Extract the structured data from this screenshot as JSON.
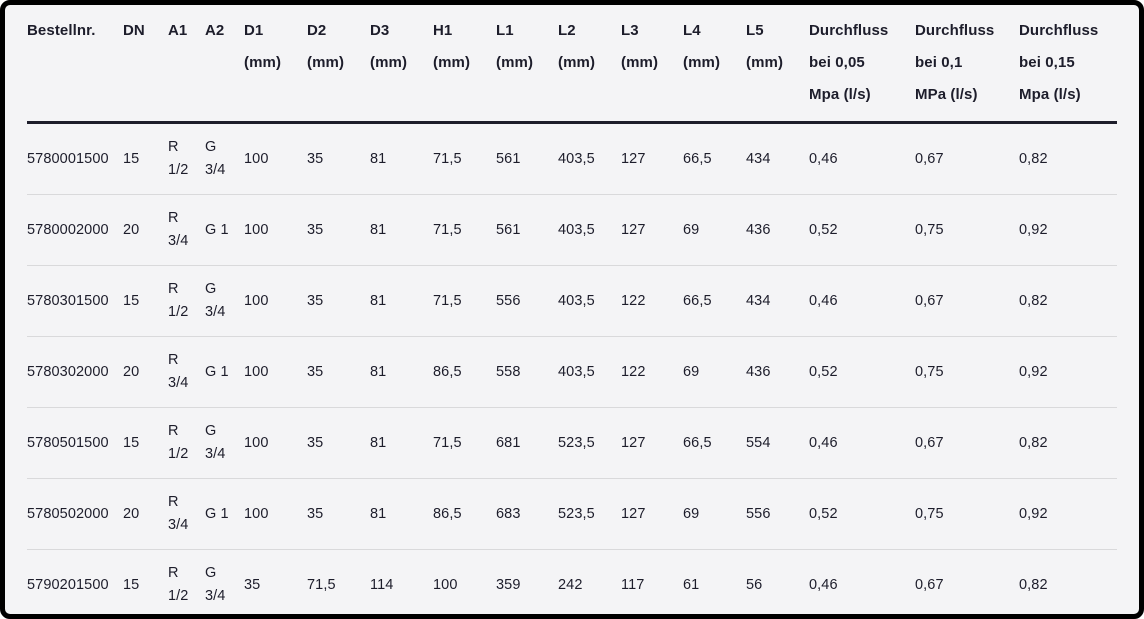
{
  "page": {
    "background_color": "#f4f4f6",
    "text_color": "#1d1d2b",
    "frame_color": "#000000",
    "header_rule_color": "#1d1d2b",
    "row_divider_color": "#d9d9db"
  },
  "table": {
    "columns": [
      {
        "id": "bestellnr",
        "label": "Bestellnr."
      },
      {
        "id": "dn",
        "label": "DN"
      },
      {
        "id": "a1",
        "label": "A1"
      },
      {
        "id": "a2",
        "label": "A2"
      },
      {
        "id": "d1",
        "label": "D1\n(mm)"
      },
      {
        "id": "d2",
        "label": "D2\n(mm)"
      },
      {
        "id": "d3",
        "label": "D3\n(mm)"
      },
      {
        "id": "h1",
        "label": "H1\n(mm)"
      },
      {
        "id": "l1",
        "label": "L1\n(mm)"
      },
      {
        "id": "l2",
        "label": "L2\n(mm)"
      },
      {
        "id": "l3",
        "label": "L3\n(mm)"
      },
      {
        "id": "l4",
        "label": "L4\n(mm)"
      },
      {
        "id": "l5",
        "label": "L5\n(mm)"
      },
      {
        "id": "durchfluss-0-05",
        "label": "Durchfluss\nbei 0,05\nMpa (l/s)"
      },
      {
        "id": "durchfluss-0-1",
        "label": "Durchfluss\nbei 0,1\nMPa (l/s)"
      },
      {
        "id": "durchfluss-0-15",
        "label": "Durchfluss\nbei 0,15\nMpa (l/s)"
      }
    ],
    "rows": [
      [
        "5780001500",
        "15",
        "R 1/2",
        "G 3/4",
        "100",
        "35",
        "81",
        "71,5",
        "561",
        "403,5",
        "127",
        "66,5",
        "434",
        "0,46",
        "0,67",
        "0,82"
      ],
      [
        "5780002000",
        "20",
        "R 3/4",
        "G 1",
        "100",
        "35",
        "81",
        "71,5",
        "561",
        "403,5",
        "127",
        "69",
        "436",
        "0,52",
        "0,75",
        "0,92"
      ],
      [
        "5780301500",
        "15",
        "R 1/2",
        "G 3/4",
        "100",
        "35",
        "81",
        "71,5",
        "556",
        "403,5",
        "122",
        "66,5",
        "434",
        "0,46",
        "0,67",
        "0,82"
      ],
      [
        "5780302000",
        "20",
        "R 3/4",
        "G 1",
        "100",
        "35",
        "81",
        "86,5",
        "558",
        "403,5",
        "122",
        "69",
        "436",
        "0,52",
        "0,75",
        "0,92"
      ],
      [
        "5780501500",
        "15",
        "R 1/2",
        "G 3/4",
        "100",
        "35",
        "81",
        "71,5",
        "681",
        "523,5",
        "127",
        "66,5",
        "554",
        "0,46",
        "0,67",
        "0,82"
      ],
      [
        "5780502000",
        "20",
        "R 3/4",
        "G 1",
        "100",
        "35",
        "81",
        "86,5",
        "683",
        "523,5",
        "127",
        "69",
        "556",
        "0,52",
        "0,75",
        "0,92"
      ],
      [
        "5790201500",
        "15",
        "R 1/2",
        "G 3/4",
        "35",
        "71,5",
        "114",
        "100",
        "359",
        "242",
        "117",
        "61",
        "56",
        "0,46",
        "0,67",
        "0,82"
      ]
    ]
  }
}
